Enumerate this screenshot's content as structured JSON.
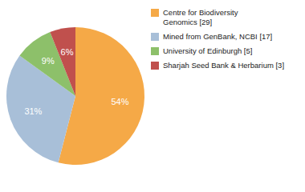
{
  "chart_data": {
    "type": "pie",
    "categories": [
      "Centre for Biodiversity\nGenomics [29]",
      "Mined from GenBank, NCBI [17]",
      "University of Edinburgh [5]",
      "Sharjah Seed Bank & Herbarium [3]"
    ],
    "values": [
      54,
      31,
      9,
      6
    ],
    "value_labels": [
      "54%",
      "31%",
      "9%",
      "6%"
    ],
    "colors": [
      "#F5A947",
      "#A8BFD8",
      "#8DC06A",
      "#C0504D"
    ],
    "data_labels": true,
    "legend": "upper right"
  }
}
